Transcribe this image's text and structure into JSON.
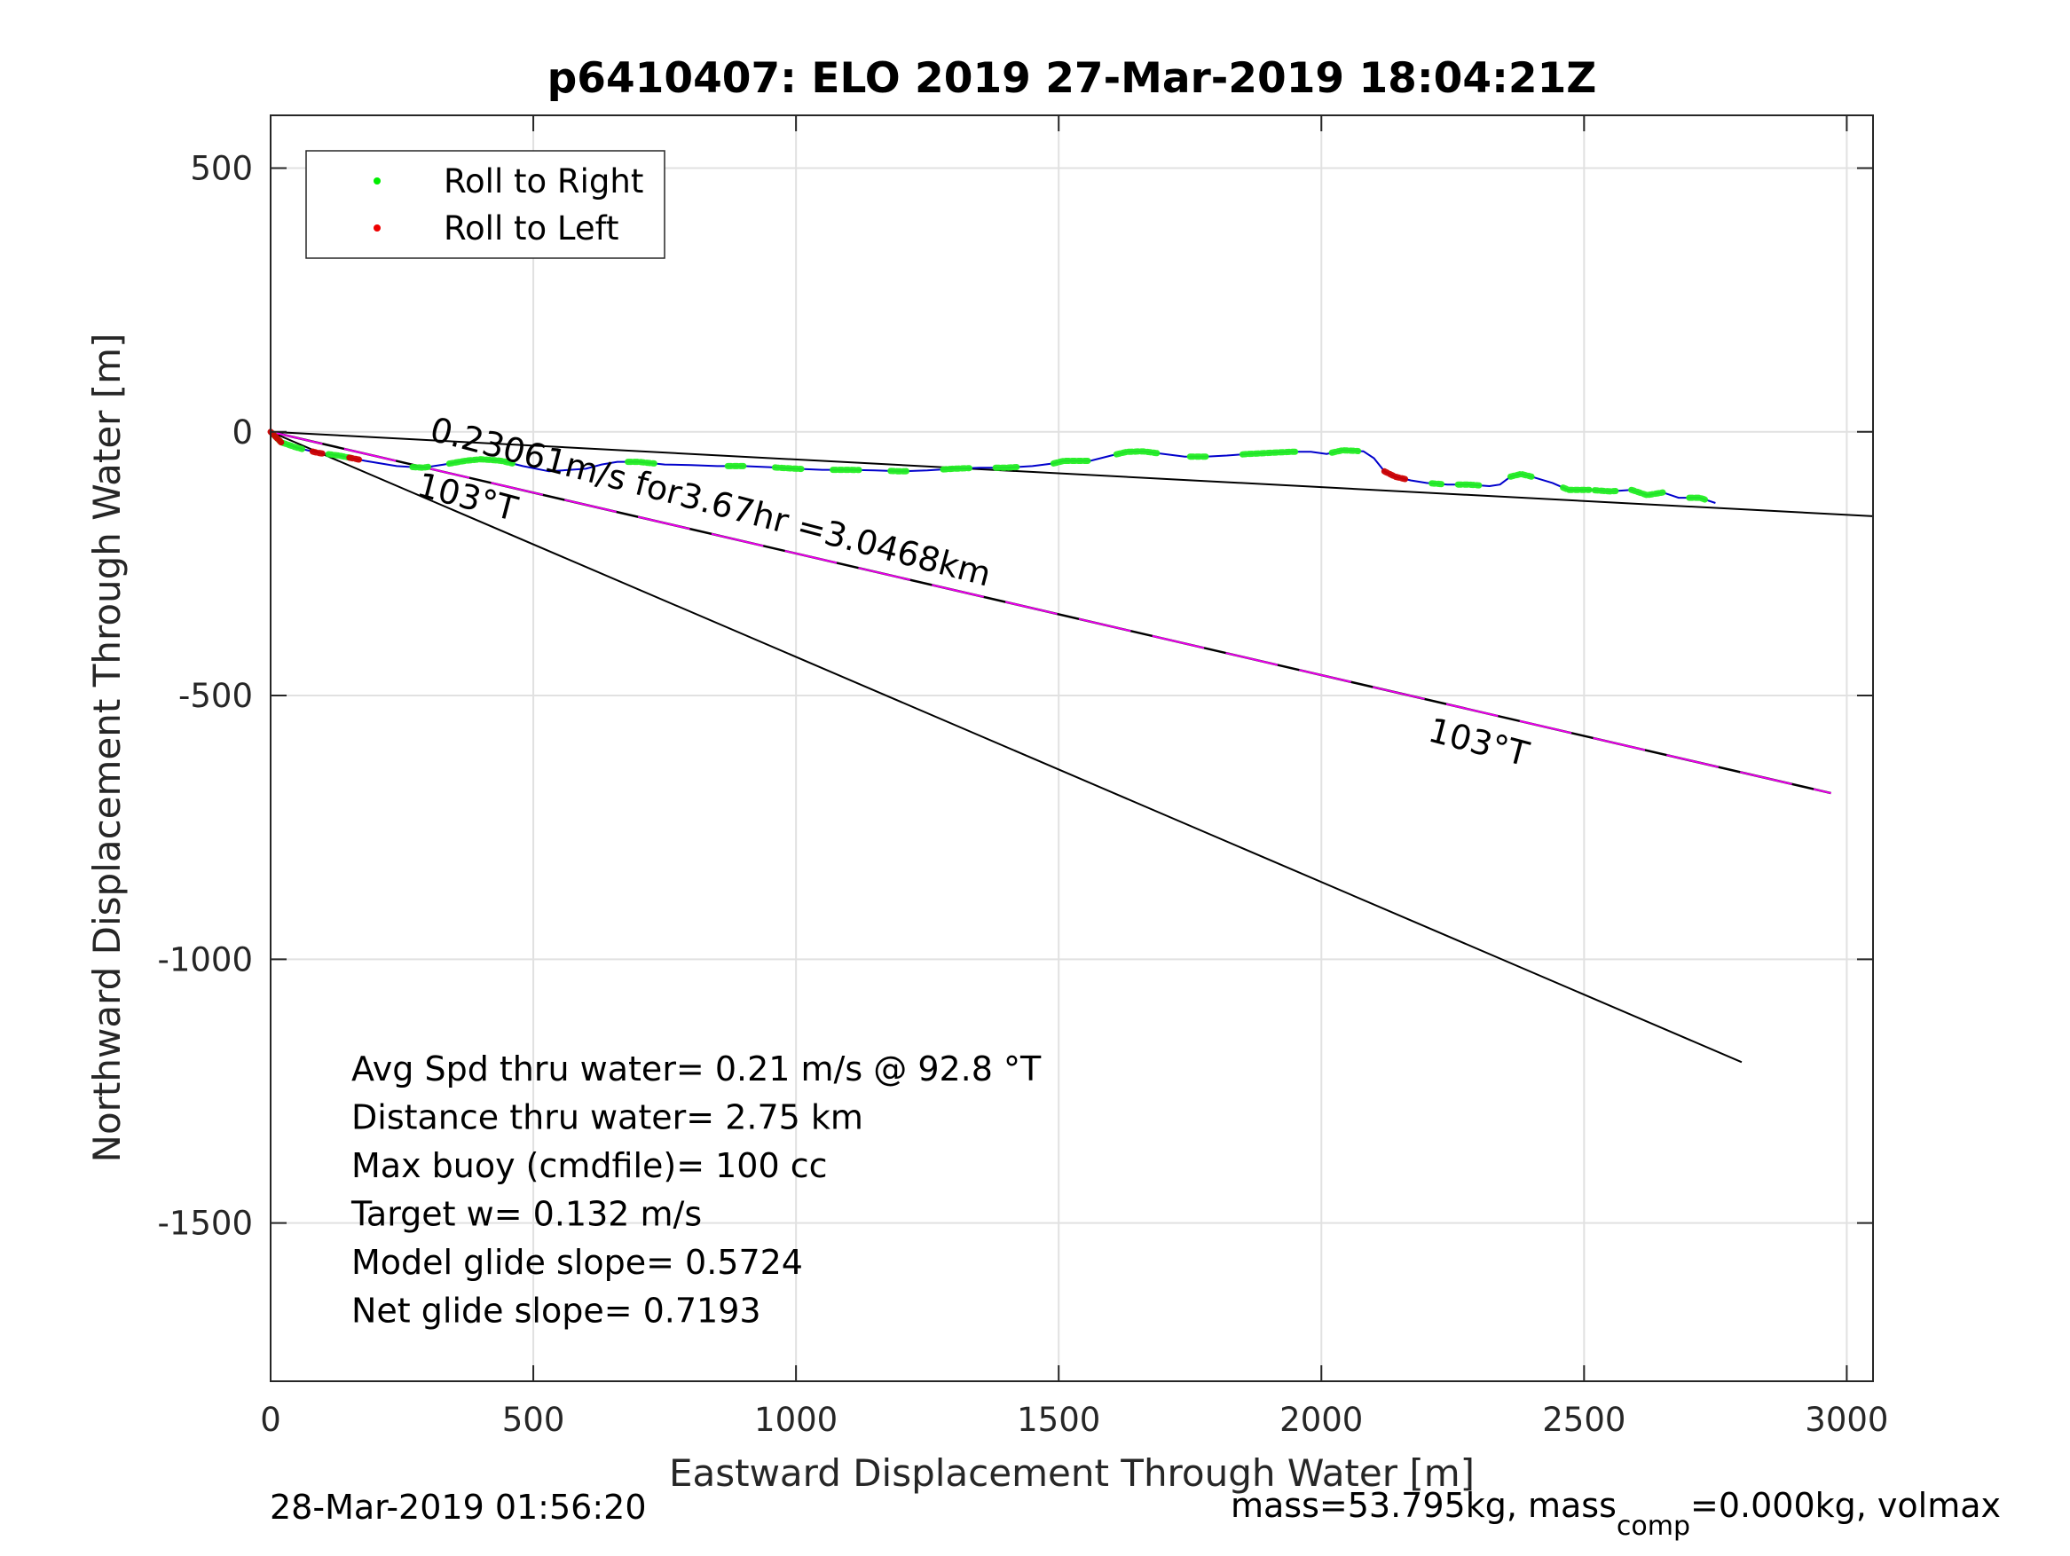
{
  "chart_data": {
    "type": "scatter",
    "title": "p6410407: ELO 2019 27-Mar-2019 18:04:21Z",
    "xlabel": "Eastward Displacement Through Water [m]",
    "ylabel": "Northward Displacement Through Water [m]",
    "xlim": [
      0,
      3050
    ],
    "ylim": [
      -1800,
      600
    ],
    "xticks": [
      0,
      500,
      1000,
      1500,
      2000,
      2500,
      3000
    ],
    "yticks": [
      500,
      0,
      -500,
      -1000,
      -1500
    ],
    "xtick_labels": [
      "0",
      "500",
      "1000",
      "1500",
      "2000",
      "2500",
      "3000"
    ],
    "ytick_labels": [
      "500",
      "0",
      "-500",
      "-1000",
      "-1500"
    ],
    "grid": true,
    "legend_position": "top-left",
    "legend": [
      {
        "label": "Roll to Right",
        "color": "#00ee00"
      },
      {
        "label": "Roll to Left",
        "color": "#ee0000"
      }
    ],
    "colors": {
      "track": "#0000cc",
      "roll_right": "#22ee22",
      "roll_left": "#cc0000",
      "drift": "#ee00ee",
      "lines": "#000000"
    },
    "track": {
      "name": "track",
      "x": [
        0,
        20,
        50,
        90,
        130,
        180,
        240,
        290,
        330,
        370,
        400,
        440,
        480,
        530,
        570,
        600,
        630,
        660,
        700,
        750,
        800,
        850,
        900,
        950,
        1000,
        1050,
        1100,
        1150,
        1200,
        1250,
        1300,
        1350,
        1400,
        1450,
        1490,
        1510,
        1530,
        1560,
        1600,
        1630,
        1660,
        1700,
        1740,
        1780,
        1820,
        1860,
        1900,
        1940,
        1980,
        2010,
        2040,
        2080,
        2100,
        2120,
        2140,
        2170,
        2200,
        2240,
        2280,
        2320,
        2340,
        2360,
        2380,
        2400,
        2440,
        2470,
        2510,
        2550,
        2590,
        2620,
        2650,
        2680,
        2720,
        2750
      ],
      "y": [
        0,
        -20,
        -30,
        -40,
        -45,
        -55,
        -65,
        -68,
        -62,
        -55,
        -52,
        -55,
        -65,
        -75,
        -72,
        -70,
        -62,
        -57,
        -57,
        -62,
        -63,
        -65,
        -65,
        -67,
        -70,
        -72,
        -72,
        -73,
        -75,
        -73,
        -70,
        -68,
        -68,
        -65,
        -60,
        -55,
        -55,
        -55,
        -45,
        -38,
        -37,
        -42,
        -47,
        -47,
        -45,
        -42,
        -40,
        -38,
        -38,
        -42,
        -35,
        -37,
        -50,
        -75,
        -85,
        -92,
        -97,
        -100,
        -100,
        -103,
        -100,
        -85,
        -80,
        -85,
        -97,
        -110,
        -110,
        -113,
        -110,
        -120,
        -115,
        -125,
        -125,
        -135
      ]
    },
    "roll_right_segments": [
      [
        5,
        60
      ],
      [
        110,
        150
      ],
      [
        270,
        300
      ],
      [
        340,
        460
      ],
      [
        680,
        730
      ],
      [
        870,
        900
      ],
      [
        960,
        1010
      ],
      [
        1070,
        1120
      ],
      [
        1180,
        1210
      ],
      [
        1280,
        1330
      ],
      [
        1380,
        1420
      ],
      [
        1490,
        1560
      ],
      [
        1610,
        1690
      ],
      [
        1750,
        1780
      ],
      [
        1850,
        1950
      ],
      [
        2020,
        2070
      ],
      [
        2210,
        2230
      ],
      [
        2260,
        2300
      ],
      [
        2360,
        2400
      ],
      [
        2460,
        2510
      ],
      [
        2520,
        2560
      ],
      [
        2590,
        2650
      ],
      [
        2700,
        2730
      ]
    ],
    "roll_left_segments": [
      [
        0,
        20
      ],
      [
        80,
        100
      ],
      [
        150,
        170
      ],
      [
        2120,
        2160
      ]
    ],
    "heading_line_1": {
      "x": [
        0,
        2800
      ],
      "y": [
        0,
        -1195
      ]
    },
    "heading_line_2": {
      "x": [
        0,
        3050
      ],
      "y": [
        0,
        -160
      ]
    },
    "drift_line": {
      "x": [
        0,
        2970
      ],
      "y": [
        0,
        -685
      ]
    },
    "annotations": [
      {
        "text": "0.23061m/s for3.67hr =3.0468km",
        "x": 300,
        "y": -15,
        "angle": 14.7
      },
      {
        "text": "103°T",
        "x": 275,
        "y": -120,
        "angle": 14.7
      },
      {
        "text": "103°T",
        "x": 2200,
        "y": -585,
        "angle": 14.7
      }
    ],
    "stats": [
      "Avg Spd thru water=  0.21 m/s @  92.8 °T",
      "Distance thru water=  2.75 km",
      "Max buoy (cmdfile)= 100 cc",
      "Target w= 0.132 m/s",
      "Model glide slope= 0.5724",
      "Net glide slope= 0.7193"
    ]
  },
  "footer": {
    "date": "28-Mar-2019 01:56:20",
    "mass_prefix": "mass=53.795kg, mass",
    "mass_sub": "comp",
    "mass_suffix": "=0.000kg, volmax"
  }
}
